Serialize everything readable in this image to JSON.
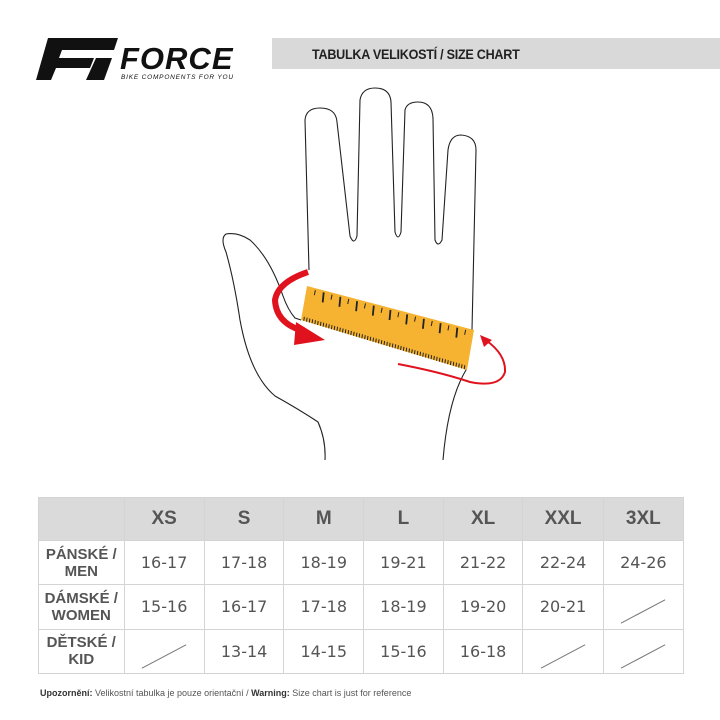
{
  "header": {
    "brand": "FORCE",
    "tagline": "BIKE COMPONENTS FOR YOU",
    "title": "TABULKA VELIKOSTÍ / SIZE CHART"
  },
  "colors": {
    "ruler": "#f6b331",
    "arrow": "#e0121e",
    "header_bg": "#d9d9d9"
  },
  "table": {
    "columns": [
      "XS",
      "S",
      "M",
      "L",
      "XL",
      "XXL",
      "3XL"
    ],
    "rows": [
      {
        "label_cz": "PÁNSKÉ /",
        "label_en": "MEN",
        "values": [
          "16-17",
          "17-18",
          "18-19",
          "19-21",
          "21-22",
          "22-24",
          "24-26"
        ]
      },
      {
        "label_cz": "DÁMSKÉ /",
        "label_en": "WOMEN",
        "values": [
          "15-16",
          "16-17",
          "17-18",
          "18-19",
          "19-20",
          "20-21",
          null
        ]
      },
      {
        "label_cz": "DĚTSKÉ /",
        "label_en": "KID",
        "values": [
          null,
          "13-14",
          "14-15",
          "15-16",
          "16-18",
          null,
          null
        ]
      }
    ]
  },
  "note": {
    "label_cz": "Upozornění:",
    "text_cz": " Velikostní tabulka je pouze orientační / ",
    "label_en": "Warning:",
    "text_en": " Size chart is just for reference"
  }
}
